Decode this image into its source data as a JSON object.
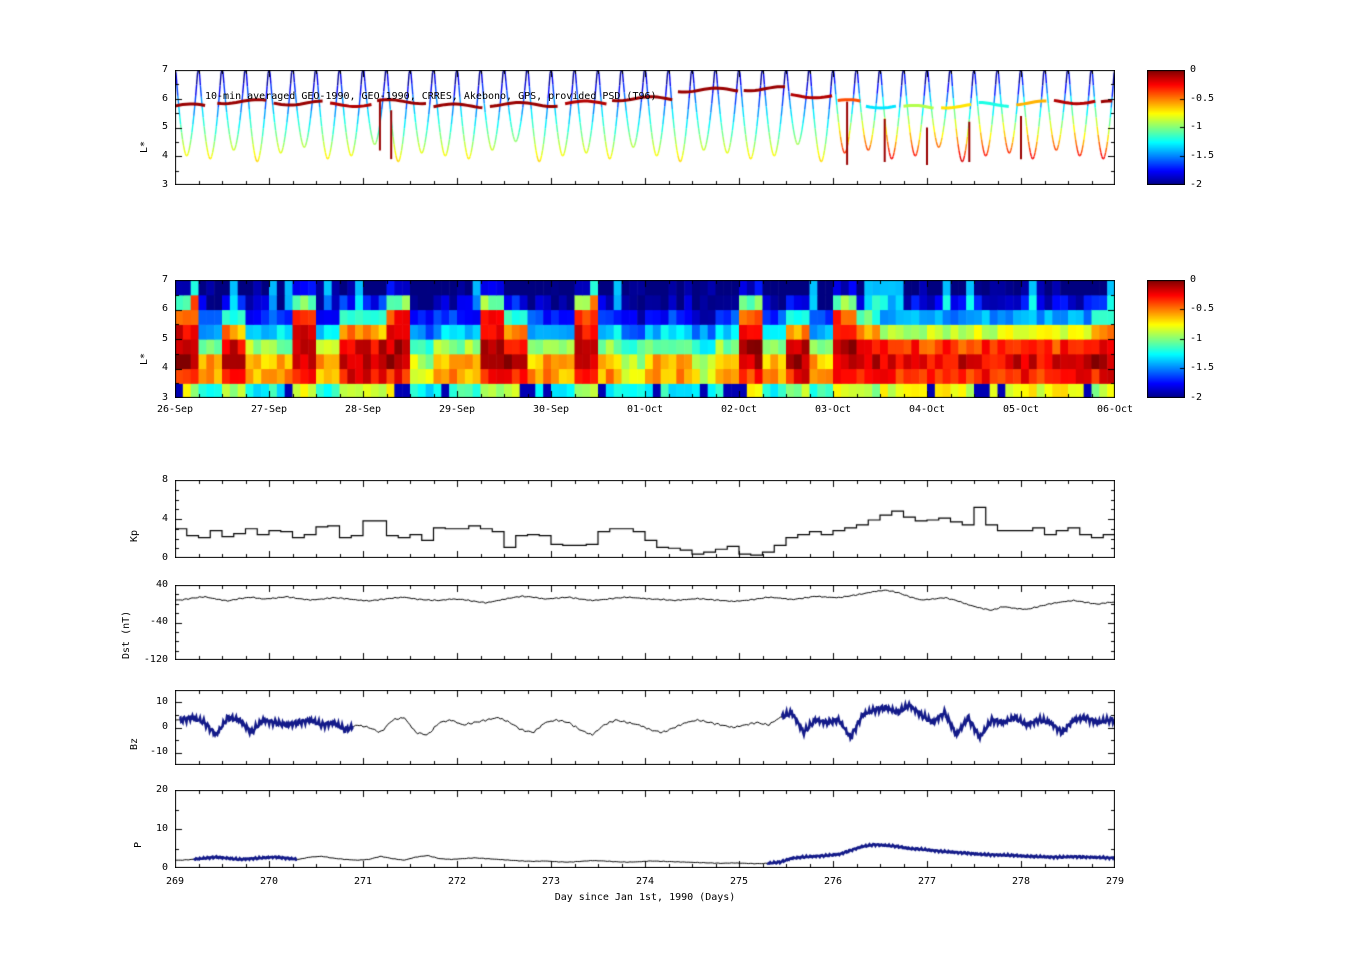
{
  "title": "10-min averaged GEO-1990, GEO-1990, CRRES, Akebono, GPS, provided PSD (T96)",
  "axis_labels": {
    "p1_y": [
      "7",
      "6",
      "5",
      "4",
      "3"
    ],
    "p2_y": [
      "7",
      "6",
      "5",
      "4",
      "3"
    ],
    "cb": [
      "0",
      "-0.5",
      "-1",
      "-1.5",
      "-2"
    ],
    "dates": [
      "26-Sep",
      "27-Sep",
      "28-Sep",
      "29-Sep",
      "30-Sep",
      "01-Oct",
      "02-Oct",
      "03-Oct",
      "04-Oct",
      "05-Oct",
      "06-Oct"
    ],
    "kp_y": [
      "8",
      "4",
      "0"
    ],
    "dst_y": [
      "40",
      "-40",
      "-120"
    ],
    "bz_y": [
      "10",
      "0",
      "-10"
    ],
    "p_y": [
      "20",
      "10",
      "0"
    ],
    "days": [
      "269",
      "270",
      "271",
      "272",
      "273",
      "274",
      "275",
      "276",
      "277",
      "278",
      "279"
    ],
    "ylabels": {
      "p1": "L*",
      "p2": "L*",
      "kp": "Kp",
      "dst": "Dst (nT)",
      "bz": "Bz",
      "p": "P"
    },
    "xlabel": "Day since Jan 1st, 1990 (Days)"
  },
  "colorbar": {
    "ticks": [
      "0",
      "-0.5",
      "-1",
      "-1.5",
      "-2"
    ],
    "vmin": -2,
    "vmax": 0
  },
  "chart_data": [
    {
      "id": "lstar_traces",
      "type": "scatter",
      "ylabel": "L*",
      "ylim": [
        3,
        7
      ],
      "yticks": [
        3,
        4,
        5,
        6,
        7
      ],
      "x_range_days": [
        0,
        10
      ],
      "color_value_range": [
        -2,
        0
      ],
      "dip_period": 0.25,
      "dip_min_L": [
        4.0,
        3.9,
        4.2,
        3.8,
        4.1,
        4.3,
        3.9,
        4.0,
        4.4,
        3.8,
        4.1,
        4.0,
        3.9,
        4.2,
        4.5,
        3.8,
        4.0,
        4.1,
        3.9,
        4.3,
        4.0,
        3.8,
        4.2,
        4.1,
        3.9,
        4.0,
        4.4,
        3.8,
        4.1,
        4.2,
        3.9,
        4.0,
        4.3,
        3.8,
        4.0,
        4.1,
        3.9,
        4.2,
        4.0,
        3.9
      ],
      "geo_band": [
        [
          0.0,
          0.35,
          5.75,
          -0.05
        ],
        [
          0.45,
          1.0,
          5.9,
          -0.05
        ],
        [
          1.05,
          1.6,
          5.85,
          -0.05
        ],
        [
          1.65,
          2.1,
          5.8,
          -0.1
        ],
        [
          2.15,
          2.7,
          5.9,
          -0.05
        ],
        [
          2.75,
          3.3,
          5.75,
          -0.05
        ],
        [
          3.35,
          4.1,
          5.8,
          -0.05
        ],
        [
          4.15,
          4.6,
          5.85,
          -0.1
        ],
        [
          4.65,
          5.3,
          6.0,
          -0.05
        ],
        [
          5.35,
          6.0,
          6.3,
          -0.05
        ],
        [
          6.05,
          6.5,
          6.35,
          -0.05
        ],
        [
          6.55,
          7.0,
          6.1,
          -0.1
        ],
        [
          7.05,
          7.3,
          5.9,
          -0.4
        ],
        [
          7.35,
          7.7,
          5.75,
          -1.3
        ],
        [
          7.75,
          8.1,
          5.7,
          -0.9
        ],
        [
          8.15,
          8.5,
          5.75,
          -0.7
        ],
        [
          8.55,
          8.9,
          5.8,
          -1.2
        ],
        [
          8.95,
          9.3,
          5.85,
          -0.6
        ],
        [
          9.35,
          9.8,
          5.9,
          -0.1
        ],
        [
          9.85,
          10.0,
          5.85,
          -0.05
        ]
      ],
      "red_spikes": [
        [
          2.18,
          4.2,
          6.0
        ],
        [
          2.3,
          3.9,
          5.6
        ],
        [
          7.15,
          3.7,
          5.9
        ],
        [
          7.55,
          3.8,
          5.3
        ],
        [
          8.0,
          3.7,
          5.0
        ],
        [
          8.45,
          3.8,
          5.2
        ],
        [
          9.0,
          3.9,
          5.4
        ]
      ]
    },
    {
      "id": "lstar_spectrogram",
      "type": "heatmap",
      "ylabel": "L*",
      "ylim": [
        3,
        7
      ],
      "x_tick_labels": [
        "26-Sep",
        "27-Sep",
        "28-Sep",
        "29-Sep",
        "30-Sep",
        "01-Oct",
        "02-Oct",
        "03-Oct",
        "04-Oct",
        "05-Oct",
        "06-Oct"
      ],
      "value_range": [
        -2,
        0
      ],
      "profiles": {
        "Q": [
          -1.2,
          -0.55,
          -0.6,
          -0.95,
          -1.35,
          -1.65,
          -1.9,
          -2.0
        ],
        "S": [
          -0.9,
          -0.25,
          -0.1,
          -0.2,
          -0.55,
          -1.1,
          -1.7,
          -2.0
        ],
        "T": [
          -0.85,
          -0.3,
          -0.1,
          -0.1,
          -0.2,
          -0.35,
          -1.0,
          -1.8
        ],
        "A": [
          -0.8,
          -0.3,
          -0.2,
          -0.35,
          -0.85,
          -1.45,
          -1.8,
          -2.0
        ],
        "B": [
          -1.3,
          -0.8,
          -0.9,
          -1.2,
          -1.5,
          -1.8,
          -2.0,
          -2.0
        ]
      },
      "columns": [
        "T",
        "Q",
        "S",
        "Q",
        "Q",
        "T",
        "Q",
        "S",
        "S",
        "T",
        "B",
        "Q",
        "Q",
        "T",
        "S",
        "Q",
        "Q",
        "T",
        "Q",
        "B",
        "Q",
        "Q",
        "B",
        "Q",
        "T",
        "Q",
        "S",
        "Q",
        "T",
        "S",
        "A",
        "A",
        "A",
        "A",
        "A",
        "A",
        "A",
        "A",
        "A",
        "S"
      ]
    },
    {
      "id": "kp",
      "type": "step",
      "ylabel": "Kp",
      "ylim": [
        0,
        8
      ],
      "yticks": [
        0,
        4,
        8
      ],
      "x_start": 269,
      "dt": 0.125,
      "values": [
        3,
        2.3,
        2.1,
        2.8,
        2.2,
        2.5,
        3,
        2.4,
        2.8,
        2.7,
        2.1,
        2.4,
        3.2,
        3.3,
        2.1,
        2.3,
        3.8,
        3.8,
        2.3,
        2.1,
        2.4,
        1.8,
        3.1,
        3,
        3,
        3.3,
        3,
        2.7,
        1.1,
        2.3,
        2.4,
        2.3,
        1.4,
        1.3,
        1.3,
        1.4,
        2.7,
        3,
        3,
        2.7,
        1.8,
        1.1,
        1,
        0.8,
        0.4,
        0.6,
        0.9,
        1.2,
        0.4,
        0.3,
        0.6,
        1.3,
        2.1,
        2.4,
        2.7,
        2.4,
        2.8,
        3.1,
        3.4,
        3.9,
        4.4,
        4.8,
        4.2,
        3.8,
        3.9,
        4.1,
        3.7,
        3.4,
        5.2,
        3.4,
        2.8,
        2.8,
        2.8,
        3.1,
        2.4,
        2.8,
        3.1,
        2.4,
        2.1,
        2.4
      ]
    },
    {
      "id": "dst",
      "type": "line",
      "ylabel": "Dst (nT)",
      "ylim": [
        -120,
        40
      ],
      "yticks": [
        -120,
        -40,
        40
      ],
      "x_start": 269,
      "dt": 0.125,
      "values": [
        8,
        12,
        15,
        10,
        6,
        11,
        14,
        10,
        12,
        15,
        11,
        8,
        10,
        13,
        11,
        8,
        6,
        9,
        12,
        14,
        10,
        8,
        7,
        10,
        9,
        5,
        2,
        7,
        12,
        16,
        14,
        10,
        12,
        14,
        10,
        7,
        9,
        12,
        14,
        12,
        10,
        9,
        7,
        9,
        11,
        9,
        7,
        5,
        7,
        10,
        14,
        12,
        9,
        12,
        16,
        14,
        13,
        17,
        21,
        26,
        29,
        24,
        15,
        8,
        10,
        13,
        7,
        -2,
        -9,
        -14,
        -6,
        -10,
        -12,
        -6,
        0,
        4,
        7,
        3,
        -1,
        3
      ]
    },
    {
      "id": "bz",
      "type": "line",
      "ylabel": "Bz",
      "ylim": [
        -15,
        15
      ],
      "yticks": [
        -10,
        0,
        10
      ],
      "x_start": 269,
      "dt": 0.125,
      "values": [
        3,
        4,
        2,
        -3,
        4,
        3,
        -2,
        3,
        2,
        1,
        2,
        3,
        1,
        2,
        -1,
        1,
        0,
        -2,
        3,
        4,
        -2,
        -3,
        2,
        3,
        1,
        2,
        3,
        4,
        2,
        -1,
        -2,
        2,
        3,
        2,
        -1,
        -3,
        1,
        3,
        2,
        1,
        -1,
        -2,
        0,
        2,
        3,
        2,
        1,
        0,
        1,
        2,
        1,
        4,
        6,
        -2,
        3,
        2,
        3,
        -4,
        5,
        7,
        8,
        6,
        9,
        5,
        2,
        6,
        -3,
        4,
        -4,
        3,
        2,
        4,
        1,
        3,
        2,
        -2,
        3,
        4,
        2,
        3
      ],
      "thick_ranges": [
        [
          269.05,
          270.9
        ],
        [
          275.45,
          279
        ]
      ],
      "thick_color": "#131a89"
    },
    {
      "id": "p",
      "type": "line",
      "ylabel": "P",
      "ylim": [
        0,
        20
      ],
      "yticks": [
        0,
        10,
        20
      ],
      "x_start": 269,
      "dt": 0.125,
      "values": [
        2,
        2.2,
        2.5,
        2.8,
        2.5,
        2.2,
        2.4,
        2.6,
        2.8,
        2.5,
        2.2,
        2.8,
        3,
        2.5,
        2.2,
        2,
        2.2,
        3,
        2.4,
        2,
        2.8,
        3.2,
        2.4,
        2.2,
        2.4,
        2.6,
        2.4,
        2.2,
        2,
        1.8,
        1.7,
        1.8,
        1.6,
        1.5,
        1.7,
        1.9,
        1.8,
        1.6,
        1.5,
        1.6,
        1.8,
        1.7,
        1.6,
        1.5,
        1.4,
        1.3,
        1.2,
        1.3,
        1.2,
        1.1,
        1.2,
        1.5,
        2.5,
        2.8,
        3,
        3.2,
        3.5,
        4.5,
        5.5,
        6,
        5.8,
        5.5,
        5,
        4.8,
        4.5,
        4.2,
        4,
        3.8,
        3.5,
        3.4,
        3.3,
        3.2,
        3,
        2.9,
        2.8,
        2.8,
        2.9,
        2.8,
        2.7,
        2.6
      ],
      "thick_ranges": [
        [
          269.2,
          270.3
        ],
        [
          275.3,
          279
        ]
      ],
      "thick_color": "#131a89",
      "xlabel": "Day since Jan 1st, 1990 (Days)",
      "xticks": [
        269,
        270,
        271,
        272,
        273,
        274,
        275,
        276,
        277,
        278,
        279
      ]
    }
  ]
}
